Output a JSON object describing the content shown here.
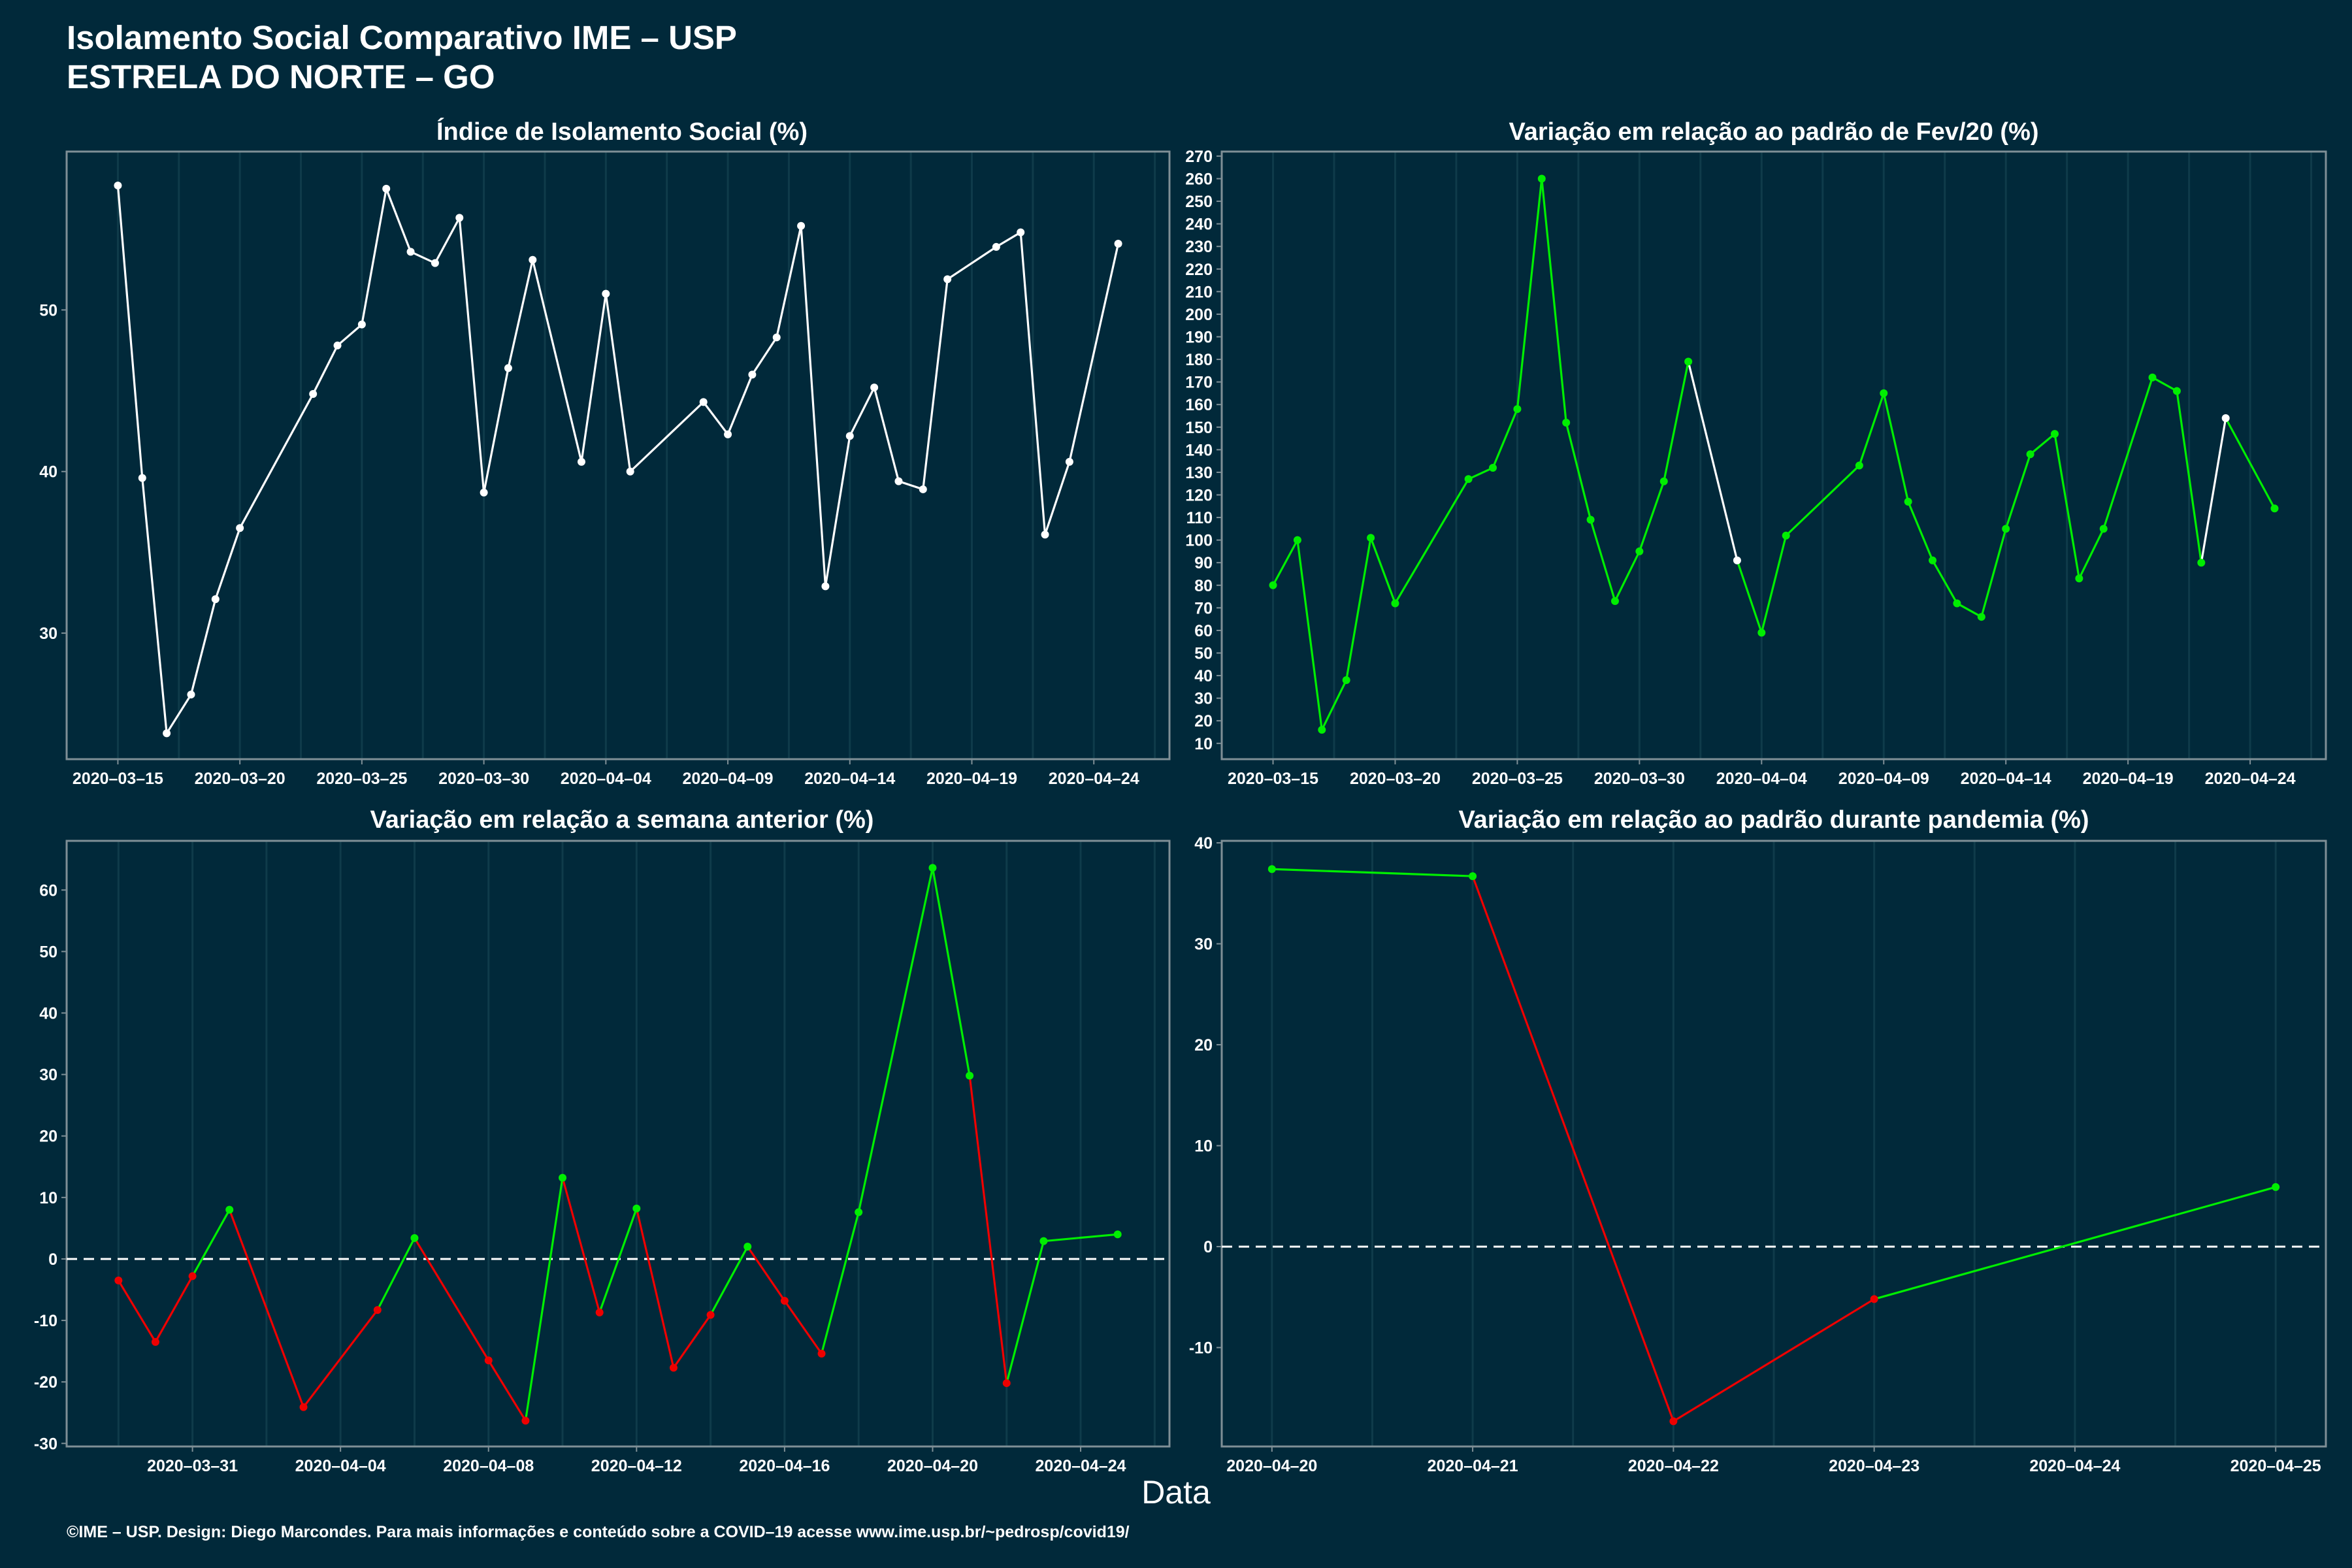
{
  "header": {
    "title_line1": "Isolamento Social Comparativo IME – USP",
    "title_line2": "ESTRELA DO NORTE – GO"
  },
  "x_axis_label": "Data",
  "footer_text": "©IME – USP. Design: Diego Marcondes. Para mais informações e conteúdo sobre a COVID–19 acesse www.ime.usp.br/~pedrosp/covid19/",
  "colors": {
    "background": "#01293a",
    "neutral_line": "#ffffff",
    "up_color": "#00ee00",
    "down_color": "#ee0000"
  },
  "chart_data": [
    {
      "id": "p1",
      "type": "line",
      "title": "Índice de Isolamento Social (%)",
      "ylim": [
        22.2,
        59.8
      ],
      "yticks": [
        30,
        40,
        50
      ],
      "xlim": [
        -2.1,
        43.1
      ],
      "x_ticks": [
        {
          "x": 0,
          "label": "2020–03–15"
        },
        {
          "x": 5,
          "label": "2020–03–20"
        },
        {
          "x": 10,
          "label": "2020–03–25"
        },
        {
          "x": 15,
          "label": "2020–03–30"
        },
        {
          "x": 20,
          "label": "2020–04–04"
        },
        {
          "x": 25,
          "label": "2020–04–09"
        },
        {
          "x": 30,
          "label": "2020–04–14"
        },
        {
          "x": 35,
          "label": "2020–04–19"
        },
        {
          "x": 40,
          "label": "2020–04–24"
        }
      ],
      "points": [
        {
          "x": 0,
          "y": 57.7,
          "c": "w"
        },
        {
          "x": 1,
          "y": 39.6,
          "c": "w"
        },
        {
          "x": 2,
          "y": 23.8,
          "c": "w"
        },
        {
          "x": 3,
          "y": 26.2,
          "c": "w"
        },
        {
          "x": 4,
          "y": 32.1,
          "c": "w"
        },
        {
          "x": 5,
          "y": 36.5,
          "c": "w"
        },
        {
          "x": 8,
          "y": 44.8,
          "c": "w"
        },
        {
          "x": 9,
          "y": 47.8,
          "c": "w"
        },
        {
          "x": 10,
          "y": 49.1,
          "c": "w"
        },
        {
          "x": 11,
          "y": 57.5,
          "c": "w"
        },
        {
          "x": 12,
          "y": 53.6,
          "c": "w"
        },
        {
          "x": 13,
          "y": 52.9,
          "c": "w"
        },
        {
          "x": 14,
          "y": 55.7,
          "c": "w"
        },
        {
          "x": 15,
          "y": 38.7,
          "c": "w"
        },
        {
          "x": 16,
          "y": 46.4,
          "c": "w"
        },
        {
          "x": 17,
          "y": 53.1,
          "c": "w"
        },
        {
          "x": 19,
          "y": 40.6,
          "c": "w"
        },
        {
          "x": 20,
          "y": 51.0,
          "c": "w"
        },
        {
          "x": 21,
          "y": 40.0,
          "c": "w"
        },
        {
          "x": 24,
          "y": 44.3,
          "c": "w"
        },
        {
          "x": 25,
          "y": 42.3,
          "c": "w"
        },
        {
          "x": 26,
          "y": 46.0,
          "c": "w"
        },
        {
          "x": 27,
          "y": 48.3,
          "c": "w"
        },
        {
          "x": 28,
          "y": 55.2,
          "c": "w"
        },
        {
          "x": 29,
          "y": 32.9,
          "c": "w"
        },
        {
          "x": 30,
          "y": 42.2,
          "c": "w"
        },
        {
          "x": 31,
          "y": 45.2,
          "c": "w"
        },
        {
          "x": 32,
          "y": 39.4,
          "c": "w"
        },
        {
          "x": 33,
          "y": 38.9,
          "c": "w"
        },
        {
          "x": 34,
          "y": 51.9,
          "c": "w"
        },
        {
          "x": 36,
          "y": 53.9,
          "c": "w"
        },
        {
          "x": 37,
          "y": 54.8,
          "c": "w"
        },
        {
          "x": 38,
          "y": 36.1,
          "c": "w"
        },
        {
          "x": 39,
          "y": 40.6,
          "c": "w"
        },
        {
          "x": 41,
          "y": 54.1,
          "c": "w"
        }
      ]
    },
    {
      "id": "p2",
      "type": "line",
      "title": "Variação em relação ao padrão de Fev/20 (%)",
      "ylim": [
        3,
        272
      ],
      "yticks": [
        10,
        20,
        30,
        40,
        50,
        60,
        70,
        80,
        90,
        100,
        110,
        120,
        130,
        140,
        150,
        160,
        170,
        180,
        190,
        200,
        210,
        220,
        230,
        240,
        250,
        260,
        270
      ],
      "xlim": [
        -2.1,
        43.1
      ],
      "x_ticks": [
        {
          "x": 0,
          "label": "2020–03–15"
        },
        {
          "x": 5,
          "label": "2020–03–20"
        },
        {
          "x": 10,
          "label": "2020–03–25"
        },
        {
          "x": 15,
          "label": "2020–03–30"
        },
        {
          "x": 20,
          "label": "2020–04–04"
        },
        {
          "x": 25,
          "label": "2020–04–09"
        },
        {
          "x": 30,
          "label": "2020–04–14"
        },
        {
          "x": 35,
          "label": "2020–04–19"
        },
        {
          "x": 40,
          "label": "2020–04–24"
        }
      ],
      "points": [
        {
          "x": 0,
          "y": 80,
          "c": "g"
        },
        {
          "x": 1,
          "y": 100,
          "c": "g"
        },
        {
          "x": 2,
          "y": 16,
          "c": "g"
        },
        {
          "x": 3,
          "y": 38,
          "c": "g"
        },
        {
          "x": 4,
          "y": 101,
          "c": "g"
        },
        {
          "x": 5,
          "y": 72,
          "c": "g"
        },
        {
          "x": 8,
          "y": 127,
          "c": "g"
        },
        {
          "x": 9,
          "y": 132,
          "c": "g"
        },
        {
          "x": 10,
          "y": 158,
          "c": "g"
        },
        {
          "x": 11,
          "y": 260,
          "c": "g"
        },
        {
          "x": 12,
          "y": 152,
          "c": "g"
        },
        {
          "x": 13,
          "y": 109,
          "c": "g"
        },
        {
          "x": 14,
          "y": 73,
          "c": "g"
        },
        {
          "x": 15,
          "y": 95,
          "c": "g"
        },
        {
          "x": 16,
          "y": 126,
          "c": "g"
        },
        {
          "x": 17,
          "y": 179,
          "c": "g"
        },
        {
          "x": 19,
          "y": 91,
          "c": "w"
        },
        {
          "x": 20,
          "y": 59,
          "c": "g"
        },
        {
          "x": 21,
          "y": 102,
          "c": "g"
        },
        {
          "x": 24,
          "y": 133,
          "c": "g"
        },
        {
          "x": 25,
          "y": 165,
          "c": "g"
        },
        {
          "x": 26,
          "y": 117,
          "c": "g"
        },
        {
          "x": 27,
          "y": 91,
          "c": "g"
        },
        {
          "x": 28,
          "y": 72,
          "c": "g"
        },
        {
          "x": 29,
          "y": 66,
          "c": "g"
        },
        {
          "x": 30,
          "y": 105,
          "c": "g"
        },
        {
          "x": 31,
          "y": 138,
          "c": "g"
        },
        {
          "x": 32,
          "y": 147,
          "c": "g"
        },
        {
          "x": 33,
          "y": 83,
          "c": "g"
        },
        {
          "x": 34,
          "y": 105,
          "c": "g"
        },
        {
          "x": 36,
          "y": 172,
          "c": "g"
        },
        {
          "x": 37,
          "y": 166,
          "c": "g"
        },
        {
          "x": 38,
          "y": 90,
          "c": "g"
        },
        {
          "x": 39,
          "y": 154,
          "c": "w"
        },
        {
          "x": 41,
          "y": 114,
          "c": "g"
        }
      ]
    },
    {
      "id": "p3",
      "type": "line",
      "title": "Variação em relação a semana anterior (%)",
      "ylim": [
        -30.5,
        68
      ],
      "yticks": [
        -30,
        -20,
        -10,
        0,
        10,
        20,
        30,
        40,
        50,
        60
      ],
      "zero_line": true,
      "xlim": [
        -1.4,
        28.4
      ],
      "x_ticks": [
        {
          "x": 2,
          "label": "2020–03–31"
        },
        {
          "x": 6,
          "label": "2020–04–04"
        },
        {
          "x": 10,
          "label": "2020–04–08"
        },
        {
          "x": 14,
          "label": "2020–04–12"
        },
        {
          "x": 18,
          "label": "2020–04–16"
        },
        {
          "x": 22,
          "label": "2020–04–20"
        },
        {
          "x": 26,
          "label": "2020–04–24"
        }
      ],
      "points": [
        {
          "x": 0,
          "y": -3.5,
          "c": "r"
        },
        {
          "x": 1,
          "y": -13.5,
          "c": "r"
        },
        {
          "x": 2,
          "y": -2.8,
          "c": "r"
        },
        {
          "x": 3,
          "y": 8.0,
          "c": "g"
        },
        {
          "x": 5,
          "y": -24.1,
          "c": "r"
        },
        {
          "x": 7,
          "y": -8.3,
          "c": "r"
        },
        {
          "x": 8,
          "y": 3.4,
          "c": "g"
        },
        {
          "x": 10,
          "y": -16.5,
          "c": "r"
        },
        {
          "x": 11,
          "y": -26.3,
          "c": "r"
        },
        {
          "x": 12,
          "y": 13.2,
          "c": "g"
        },
        {
          "x": 13,
          "y": -8.7,
          "c": "r"
        },
        {
          "x": 14,
          "y": 8.2,
          "c": "g"
        },
        {
          "x": 15,
          "y": -17.7,
          "c": "r"
        },
        {
          "x": 16,
          "y": -9.1,
          "c": "r"
        },
        {
          "x": 17,
          "y": 2.0,
          "c": "g"
        },
        {
          "x": 18,
          "y": -6.8,
          "c": "r"
        },
        {
          "x": 19,
          "y": -15.4,
          "c": "r"
        },
        {
          "x": 20,
          "y": 7.6,
          "c": "g"
        },
        {
          "x": 22,
          "y": 63.6,
          "c": "g"
        },
        {
          "x": 23,
          "y": 29.8,
          "c": "g"
        },
        {
          "x": 24,
          "y": -20.2,
          "c": "r"
        },
        {
          "x": 25,
          "y": 2.9,
          "c": "g"
        },
        {
          "x": 27,
          "y": 4.0,
          "c": "g"
        }
      ]
    },
    {
      "id": "p4",
      "type": "line",
      "title": "Variação em relação ao padrão durante pandemia (%)",
      "ylim": [
        -19.8,
        40.2
      ],
      "yticks": [
        -10,
        0,
        10,
        20,
        30,
        40
      ],
      "zero_line": true,
      "xlim": [
        -0.25,
        5.25
      ],
      "x_ticks": [
        {
          "x": 0,
          "label": "2020–04–20"
        },
        {
          "x": 1,
          "label": "2020–04–21"
        },
        {
          "x": 2,
          "label": "2020–04–22"
        },
        {
          "x": 3,
          "label": "2020–04–23"
        },
        {
          "x": 4,
          "label": "2020–04–24"
        },
        {
          "x": 5,
          "label": "2020–04–25"
        }
      ],
      "points": [
        {
          "x": 0,
          "y": 37.4,
          "c": "g"
        },
        {
          "x": 1,
          "y": 36.7,
          "c": "g"
        },
        {
          "x": 2,
          "y": -17.3,
          "c": "r"
        },
        {
          "x": 3,
          "y": -5.2,
          "c": "r"
        },
        {
          "x": 5,
          "y": 5.9,
          "c": "g"
        }
      ]
    }
  ]
}
